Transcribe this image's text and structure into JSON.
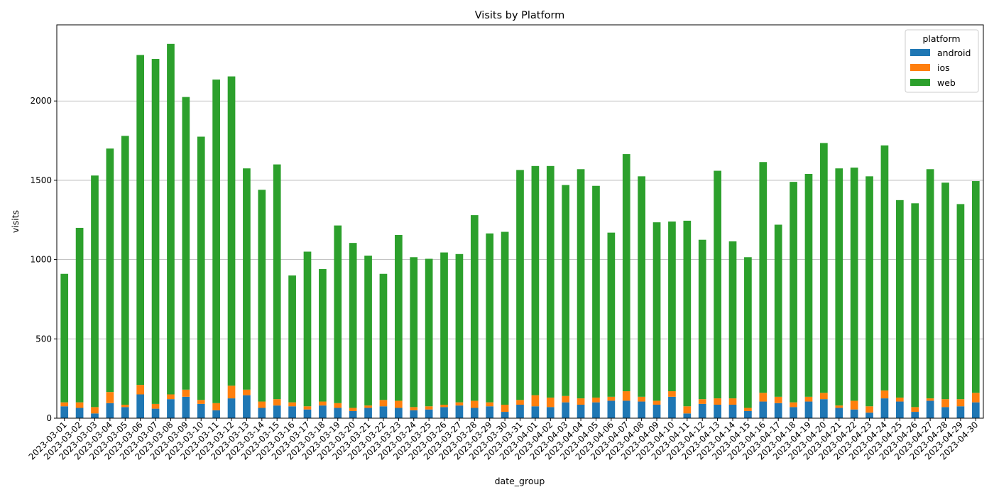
{
  "colors": {
    "android": "#1f77b4",
    "ios": "#ff7f0e",
    "web": "#2ca02c",
    "grid": "#b0b0b0",
    "axis": "#000000"
  },
  "chart_data": {
    "type": "bar",
    "stacked": true,
    "title": "Visits by Platform",
    "xlabel": "date_group",
    "ylabel": "visits",
    "ylim": [
      0,
      2480
    ],
    "yticks": [
      0,
      500,
      1000,
      1500,
      2000
    ],
    "grid": "horizontal",
    "legend": {
      "title": "platform",
      "position": "top-right",
      "entries": [
        "android",
        "ios",
        "web"
      ]
    },
    "categories": [
      "2023-03-01",
      "2023-03-02",
      "2023-03-03",
      "2023-03-04",
      "2023-03-05",
      "2023-03-06",
      "2023-03-07",
      "2023-03-08",
      "2023-03-09",
      "2023-03-10",
      "2023-03-11",
      "2023-03-12",
      "2023-03-13",
      "2023-03-14",
      "2023-03-15",
      "2023-03-16",
      "2023-03-17",
      "2023-03-18",
      "2023-03-19",
      "2023-03-20",
      "2023-03-21",
      "2023-03-22",
      "2023-03-23",
      "2023-03-24",
      "2023-03-25",
      "2023-03-26",
      "2023-03-27",
      "2023-03-28",
      "2023-03-29",
      "2023-03-30",
      "2023-03-31",
      "2023-04-01",
      "2023-04-02",
      "2023-04-03",
      "2023-04-04",
      "2023-04-05",
      "2023-04-06",
      "2023-04-07",
      "2023-04-08",
      "2023-04-09",
      "2023-04-10",
      "2023-04-11",
      "2023-04-12",
      "2023-04-13",
      "2023-04-14",
      "2023-04-15",
      "2023-04-16",
      "2023-04-17",
      "2023-04-18",
      "2023-04-19",
      "2023-04-20",
      "2023-04-21",
      "2023-04-22",
      "2023-04-23",
      "2023-04-24",
      "2023-04-25",
      "2023-04-26",
      "2023-04-27",
      "2023-04-28",
      "2023-04-29",
      "2023-04-30"
    ],
    "series": [
      {
        "name": "android",
        "values": [
          75,
          65,
          30,
          95,
          70,
          150,
          60,
          120,
          135,
          90,
          50,
          125,
          145,
          65,
          80,
          75,
          55,
          80,
          65,
          45,
          65,
          75,
          65,
          50,
          55,
          70,
          80,
          65,
          75,
          40,
          85,
          75,
          70,
          100,
          85,
          100,
          110,
          110,
          105,
          85,
          135,
          30,
          90,
          85,
          85,
          45,
          105,
          95,
          70,
          105,
          120,
          65,
          55,
          35,
          125,
          105,
          40,
          110,
          70,
          75,
          100
        ]
      },
      {
        "name": "ios",
        "values": [
          25,
          35,
          40,
          70,
          15,
          60,
          30,
          30,
          45,
          25,
          45,
          80,
          35,
          40,
          40,
          25,
          20,
          25,
          30,
          20,
          15,
          40,
          45,
          20,
          20,
          15,
          20,
          45,
          25,
          45,
          30,
          70,
          60,
          40,
          40,
          30,
          25,
          60,
          30,
          25,
          35,
          45,
          30,
          40,
          40,
          20,
          55,
          40,
          30,
          30,
          40,
          15,
          55,
          40,
          50,
          25,
          30,
          15,
          50,
          45,
          60
        ]
      },
      {
        "name": "web",
        "values": [
          810,
          1100,
          1460,
          1535,
          1695,
          2080,
          2175,
          2210,
          1845,
          1660,
          2040,
          1950,
          1395,
          1335,
          1480,
          800,
          975,
          835,
          1120,
          1040,
          945,
          795,
          1045,
          945,
          930,
          960,
          935,
          1170,
          1065,
          1090,
          1450,
          1445,
          1460,
          1330,
          1445,
          1335,
          1035,
          1495,
          1390,
          1125,
          1070,
          1170,
          1005,
          1435,
          990,
          950,
          1455,
          1085,
          1390,
          1405,
          1575,
          1495,
          1470,
          1450,
          1545,
          1245,
          1285,
          1445,
          1365,
          1230,
          1335
        ]
      }
    ]
  }
}
